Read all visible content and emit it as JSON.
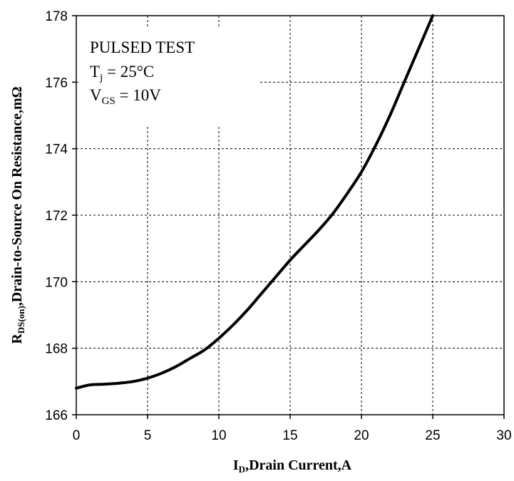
{
  "chart_data": {
    "type": "line",
    "title": "",
    "xlabel": {
      "main": "I",
      "sub": "D",
      "rest": ",Drain Current,A"
    },
    "ylabel": {
      "main": "R",
      "sub": "DS(on)",
      "rest": ",Drain-to-Source On Resistance,mΩ"
    },
    "xlim": [
      0,
      30
    ],
    "ylim": [
      166,
      178
    ],
    "x_ticks": [
      0,
      5,
      10,
      15,
      20,
      25,
      30
    ],
    "y_ticks": [
      166,
      168,
      170,
      172,
      174,
      176,
      178
    ],
    "grid": true,
    "annotations": [
      {
        "text": "PULSED TEST"
      },
      {
        "main": "T",
        "sub": "j",
        "rest": " = 25°C"
      },
      {
        "main": "V",
        "sub": "GS",
        "rest": " = 10V"
      }
    ],
    "series": [
      {
        "x": [
          0,
          1,
          2,
          3,
          4,
          5,
          6,
          7,
          8,
          9,
          10,
          11,
          12,
          13,
          14,
          15,
          16,
          17,
          18,
          19,
          20,
          21,
          22,
          23,
          24,
          25
        ],
        "y": [
          166.8,
          166.9,
          166.92,
          166.95,
          167.0,
          167.1,
          167.25,
          167.45,
          167.7,
          167.95,
          168.3,
          168.7,
          169.15,
          169.65,
          170.15,
          170.65,
          171.1,
          171.55,
          172.05,
          172.65,
          173.3,
          174.1,
          175.0,
          176.0,
          177.0,
          178.0
        ]
      }
    ]
  }
}
